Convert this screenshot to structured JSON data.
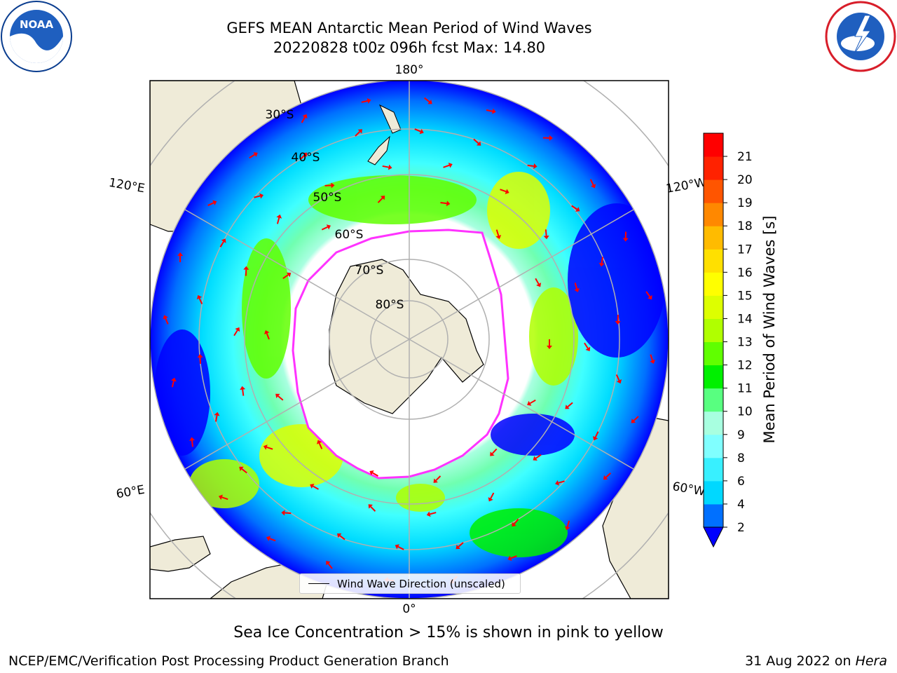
{
  "title": {
    "line1": "GEFS MEAN Antarctic Mean Period of Wind Waves",
    "line2": "20220828 t00z 096h fcst   Max: 14.80"
  },
  "logos": {
    "left": {
      "icon": "noaa-logo-icon",
      "text": "NOAA"
    },
    "right": {
      "icon": "national-weather-service-logo-icon"
    }
  },
  "map": {
    "projection": "south-polar-stereographic",
    "longitude_labels": [
      "180°",
      "120°E",
      "120°W",
      "60°E",
      "60°W",
      "0°"
    ],
    "latitude_labels": [
      "30°S",
      "40°S",
      "50°S",
      "60°S",
      "70°S",
      "80°S"
    ],
    "legend": {
      "label": "Wind Wave Direction (unscaled)"
    },
    "arrow_color": "#ff0000",
    "land_color": "#efebd8",
    "ice_edge_color": "#ff33ff"
  },
  "colorbar": {
    "label": "Mean Period of Wind Waves [s]",
    "ticks": [
      "2",
      "4",
      "6",
      "8",
      "9",
      "10",
      "11",
      "12",
      "13",
      "14",
      "15",
      "16",
      "17",
      "18",
      "19",
      "20",
      "21"
    ],
    "colors": [
      "#0070ff",
      "#00d8ff",
      "#38f0ff",
      "#80ffff",
      "#a8ffe0",
      "#58ff80",
      "#00f000",
      "#60ff00",
      "#b0ff00",
      "#ddff00",
      "#ffff00",
      "#ffe000",
      "#ffbb00",
      "#ff8800",
      "#ff5500",
      "#ff2200",
      "#ff0000"
    ],
    "under_color": "#0000ff",
    "extend": "min"
  },
  "footer": {
    "caption": "Sea Ice Concentration > 15% is shown in pink to yellow",
    "credit": "NCEP/EMC/Verification Post Processing Product Generation Branch",
    "date": "31 Aug 2022 on ",
    "machine": "Hera"
  }
}
